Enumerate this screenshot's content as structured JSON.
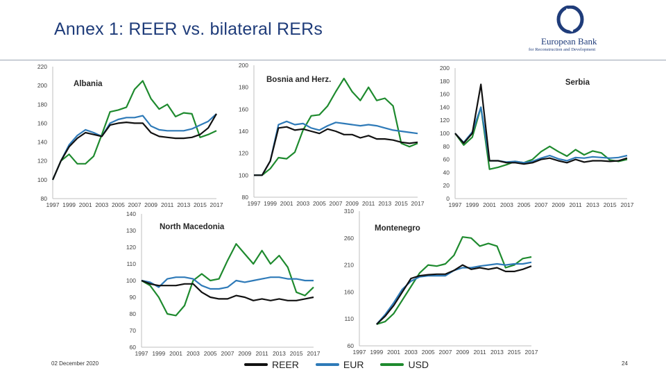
{
  "page": {
    "title": "Annex 1: REER vs. bilateral RERs",
    "date": "02 December 2020",
    "page_number": "24"
  },
  "logo": {
    "name": "European Bank",
    "subtitle": "for Reconstruction and Development",
    "icon": "ebrd-logo-icon",
    "color": "#1f3c7a"
  },
  "legend": [
    {
      "label": "REER",
      "color": "#111111"
    },
    {
      "label": "EUR",
      "color": "#2e7ab8"
    },
    {
      "label": "USD",
      "color": "#1e8a2e"
    }
  ],
  "chart_data": [
    {
      "type": "line",
      "title": "Albania",
      "x": [
        1997,
        1998,
        1999,
        2000,
        2001,
        2002,
        2003,
        2004,
        2005,
        2006,
        2007,
        2008,
        2009,
        2010,
        2011,
        2012,
        2013,
        2014,
        2015,
        2016,
        2017
      ],
      "x_ticks": [
        "1997",
        "1999",
        "2001",
        "2003",
        "2005",
        "2007",
        "2009",
        "2011",
        "2013",
        "2015",
        "2017"
      ],
      "ylim": [
        80,
        220
      ],
      "y_ticks": [
        "80",
        "100",
        "120",
        "140",
        "160",
        "180",
        "200",
        "220"
      ],
      "series": [
        {
          "name": "REER",
          "values": [
            100,
            120,
            135,
            144,
            150,
            148,
            146,
            158,
            160,
            161,
            160,
            160,
            150,
            146,
            145,
            144,
            144,
            145,
            148,
            155,
            170
          ]
        },
        {
          "name": "EUR",
          "values": [
            100,
            120,
            137,
            147,
            153,
            150,
            146,
            160,
            164,
            166,
            166,
            168,
            157,
            153,
            152,
            152,
            152,
            154,
            158,
            162,
            170
          ]
        },
        {
          "name": "USD",
          "values": [
            100,
            120,
            127,
            117,
            117,
            125,
            148,
            172,
            174,
            177,
            196,
            205,
            186,
            175,
            180,
            167,
            171,
            170,
            145,
            148,
            152
          ]
        }
      ]
    },
    {
      "type": "line",
      "title": "Bosnia and Herz.",
      "x": [
        1997,
        1998,
        1999,
        2000,
        2001,
        2002,
        2003,
        2004,
        2005,
        2006,
        2007,
        2008,
        2009,
        2010,
        2011,
        2012,
        2013,
        2014,
        2015,
        2016,
        2017
      ],
      "x_ticks": [
        "1997",
        "1999",
        "2001",
        "2003",
        "2005",
        "2007",
        "2009",
        "2011",
        "2013",
        "2015",
        "2017"
      ],
      "ylim": [
        80,
        200
      ],
      "y_ticks": [
        "80",
        "100",
        "120",
        "140",
        "160",
        "180",
        "200"
      ],
      "series": [
        {
          "name": "REER",
          "values": [
            100,
            100,
            113,
            143,
            144,
            141,
            142,
            140,
            138,
            142,
            140,
            137,
            137,
            134,
            136,
            133,
            133,
            132,
            130,
            129,
            130
          ]
        },
        {
          "name": "EUR",
          "values": [
            100,
            100,
            113,
            146,
            149,
            146,
            147,
            143,
            141,
            145,
            148,
            147,
            146,
            145,
            146,
            145,
            143,
            141,
            140,
            139,
            138
          ]
        },
        {
          "name": "USD",
          "values": [
            100,
            100,
            106,
            116,
            115,
            121,
            141,
            154,
            155,
            163,
            176,
            188,
            176,
            168,
            180,
            168,
            170,
            163,
            129,
            126,
            129
          ]
        }
      ]
    },
    {
      "type": "line",
      "title": "Serbia",
      "x": [
        1997,
        1998,
        1999,
        2000,
        2001,
        2002,
        2003,
        2004,
        2005,
        2006,
        2007,
        2008,
        2009,
        2010,
        2011,
        2012,
        2013,
        2014,
        2015,
        2016,
        2017
      ],
      "x_ticks": [
        "1997",
        "1999",
        "2001",
        "2003",
        "2005",
        "2007",
        "2009",
        "2011",
        "2013",
        "2015",
        "2017"
      ],
      "ylim": [
        0,
        200
      ],
      "y_ticks": [
        "0",
        "20",
        "40",
        "60",
        "80",
        "100",
        "120",
        "140",
        "160",
        "180",
        "200"
      ],
      "series": [
        {
          "name": "REER",
          "values": [
            100,
            85,
            100,
            175,
            58,
            58,
            55,
            55,
            53,
            55,
            60,
            62,
            58,
            55,
            60,
            56,
            58,
            58,
            57,
            58,
            62
          ]
        },
        {
          "name": "EUR",
          "values": [
            100,
            86,
            102,
            140,
            58,
            58,
            56,
            57,
            55,
            57,
            62,
            66,
            61,
            58,
            63,
            62,
            64,
            63,
            62,
            63,
            66
          ]
        },
        {
          "name": "USD",
          "values": [
            100,
            82,
            94,
            140,
            45,
            48,
            52,
            57,
            55,
            60,
            72,
            80,
            72,
            65,
            75,
            67,
            73,
            70,
            59,
            57,
            60
          ]
        }
      ]
    },
    {
      "type": "line",
      "title": "North Macedonia",
      "x": [
        1997,
        1998,
        1999,
        2000,
        2001,
        2002,
        2003,
        2004,
        2005,
        2006,
        2007,
        2008,
        2009,
        2010,
        2011,
        2012,
        2013,
        2014,
        2015,
        2016,
        2017
      ],
      "x_ticks": [
        "1997",
        "1999",
        "2001",
        "2003",
        "2005",
        "2007",
        "2009",
        "2011",
        "2013",
        "2015",
        "2017"
      ],
      "ylim": [
        60,
        140
      ],
      "y_ticks": [
        "60",
        "70",
        "80",
        "90",
        "100",
        "110",
        "120",
        "130",
        "140"
      ],
      "series": [
        {
          "name": "REER",
          "values": [
            100,
            98,
            97,
            97,
            97,
            98,
            98,
            93,
            90,
            89,
            89,
            91,
            90,
            88,
            89,
            88,
            89,
            88,
            88,
            89,
            90
          ]
        },
        {
          "name": "EUR",
          "values": [
            100,
            99,
            96,
            101,
            102,
            102,
            101,
            97,
            95,
            95,
            96,
            100,
            99,
            100,
            101,
            102,
            102,
            101,
            101,
            100,
            100
          ]
        },
        {
          "name": "USD",
          "values": [
            100,
            97,
            90,
            80,
            79,
            85,
            100,
            104,
            100,
            101,
            112,
            122,
            116,
            110,
            118,
            110,
            115,
            108,
            93,
            91,
            96
          ]
        }
      ]
    },
    {
      "type": "line",
      "title": "Montenegro",
      "x": [
        1999,
        2000,
        2001,
        2002,
        2003,
        2004,
        2005,
        2006,
        2007,
        2008,
        2009,
        2010,
        2011,
        2012,
        2013,
        2014,
        2015,
        2016,
        2017
      ],
      "x_ticks": [
        "1997",
        "1999",
        "2001",
        "2003",
        "2005",
        "2007",
        "2009",
        "2011",
        "2013",
        "2015",
        "2017"
      ],
      "x_range": [
        1997,
        2017
      ],
      "ylim": [
        60,
        310
      ],
      "y_ticks": [
        "60",
        "110",
        "160",
        "210",
        "260",
        "310"
      ],
      "series": [
        {
          "name": "REER",
          "values": [
            100,
            115,
            135,
            160,
            185,
            190,
            192,
            193,
            193,
            200,
            210,
            202,
            205,
            202,
            205,
            198,
            198,
            202,
            208
          ]
        },
        {
          "name": "EUR",
          "values": [
            100,
            118,
            140,
            165,
            180,
            188,
            190,
            190,
            190,
            200,
            205,
            205,
            208,
            210,
            212,
            210,
            212,
            212,
            215
          ]
        },
        {
          "name": "USD",
          "values": [
            100,
            105,
            120,
            145,
            170,
            195,
            210,
            208,
            212,
            228,
            262,
            260,
            245,
            250,
            245,
            205,
            210,
            222,
            225
          ]
        }
      ]
    }
  ]
}
